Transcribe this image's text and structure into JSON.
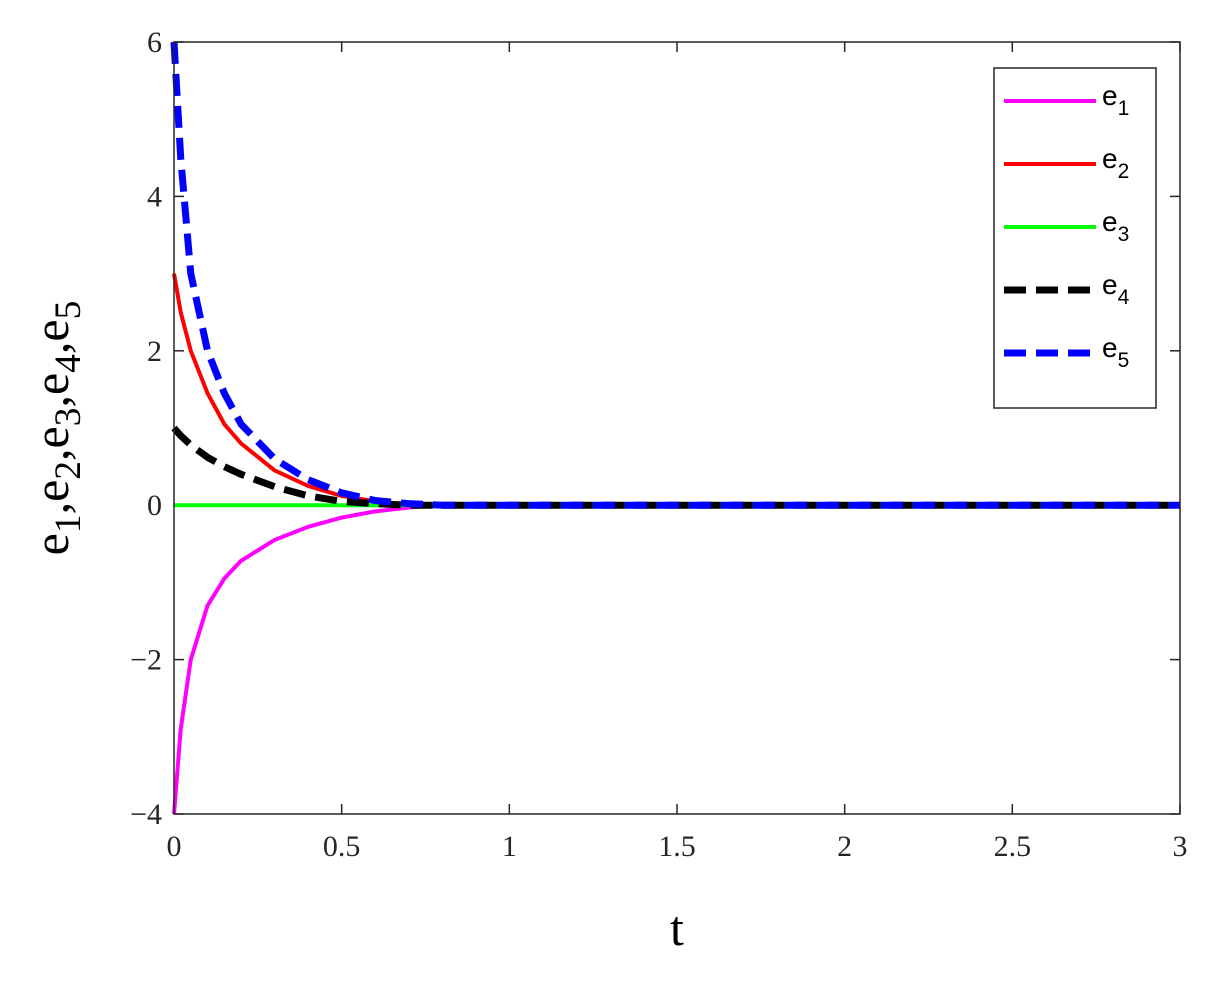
{
  "chart_data": {
    "type": "line",
    "xlabel": "t",
    "ylabel": "e1,e2,e3,e4,e5",
    "x": [
      0,
      0.02,
      0.05,
      0.1,
      0.15,
      0.2,
      0.3,
      0.4,
      0.5,
      0.6,
      0.7,
      0.8,
      1,
      1.5,
      2,
      2.5,
      3
    ],
    "series": [
      {
        "name": "e1",
        "color": "#ff00ff",
        "dashed": false,
        "values": [
          -4,
          -2.9,
          -2.0,
          -1.3,
          -0.95,
          -0.72,
          -0.45,
          -0.28,
          -0.16,
          -0.08,
          -0.03,
          0,
          0,
          0,
          0,
          0,
          0
        ]
      },
      {
        "name": "e2",
        "color": "#ff0000",
        "dashed": false,
        "values": [
          3,
          2.5,
          2.0,
          1.45,
          1.05,
          0.8,
          0.45,
          0.25,
          0.12,
          0.05,
          0.01,
          0,
          0,
          0,
          0,
          0,
          0
        ]
      },
      {
        "name": "e3",
        "color": "#00ff00",
        "dashed": false,
        "values": [
          0,
          0,
          0,
          0,
          0,
          0,
          0,
          0,
          0,
          0,
          0,
          0,
          0,
          0,
          0,
          0,
          0
        ]
      },
      {
        "name": "e4",
        "color": "#000000",
        "dashed": true,
        "values": [
          1,
          0.9,
          0.78,
          0.62,
          0.5,
          0.4,
          0.24,
          0.12,
          0.05,
          0.02,
          0,
          0,
          0,
          0,
          0,
          0,
          0
        ]
      },
      {
        "name": "e5",
        "color": "#0000ff",
        "dashed": true,
        "values": [
          6,
          4.5,
          3.0,
          2.0,
          1.45,
          1.05,
          0.6,
          0.33,
          0.16,
          0.06,
          0.02,
          0,
          0,
          0,
          0,
          0,
          0
        ]
      }
    ],
    "xlim": [
      0,
      3
    ],
    "xticks": [
      0,
      0.5,
      1,
      1.5,
      2,
      2.5,
      3
    ],
    "ylim": [
      -4,
      6
    ],
    "yticks": [
      {
        "value": -4,
        "label": "−4"
      },
      {
        "value": -2,
        "label": "−2"
      },
      0,
      2,
      4,
      6
    ],
    "grid": false,
    "legend": "upper-right"
  }
}
